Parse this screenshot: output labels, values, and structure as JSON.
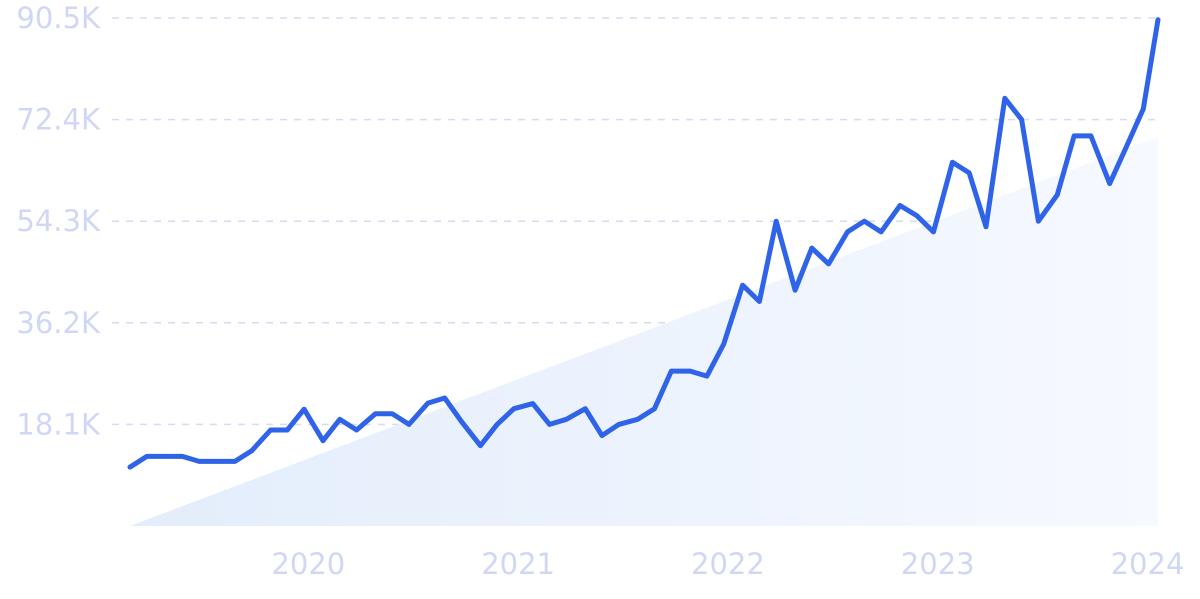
{
  "chart_data": {
    "type": "line",
    "title": "",
    "xlabel": "",
    "ylabel": "",
    "ylim": [
      0,
      90500
    ],
    "xlim": [
      2019.15,
      2024.05
    ],
    "grid": true,
    "y_tick_labels": [
      "18.1K",
      "36.2K",
      "54.3K",
      "72.4K",
      "90.5K"
    ],
    "y_ticks": [
      18100,
      36200,
      54300,
      72400,
      90500
    ],
    "x_tick_labels": [
      "2020",
      "2021",
      "2022",
      "2023",
      "2024"
    ],
    "x_ticks": [
      2020,
      2021,
      2022,
      2023,
      2024
    ],
    "colors": {
      "line": "#2f63e8",
      "trend_fill": "#e3edfb",
      "grid": "#d5dcf2",
      "tick_text": "#cfd7f5"
    },
    "trend": {
      "x": [
        2019.15,
        2024.05
      ],
      "y": [
        0,
        69300
      ]
    },
    "series": [
      {
        "x": [
          2019.15,
          2019.23,
          2019.32,
          2019.4,
          2019.48,
          2019.57,
          2019.65,
          2019.73,
          2019.82,
          2019.9,
          2019.98,
          2020.07,
          2020.15,
          2020.23,
          2020.32,
          2020.4,
          2020.48,
          2020.57,
          2020.65,
          2020.73,
          2020.82,
          2020.9,
          2020.98,
          2021.07,
          2021.15,
          2021.23,
          2021.32,
          2021.4,
          2021.48,
          2021.57,
          2021.65,
          2021.73,
          2021.82,
          2021.9,
          2021.98,
          2022.07,
          2022.15,
          2022.23,
          2022.32,
          2022.4,
          2022.48,
          2022.57,
          2022.65,
          2022.73,
          2022.82,
          2022.9,
          2022.98,
          2023.07,
          2023.15,
          2023.23,
          2023.32,
          2023.4,
          2023.48,
          2023.57,
          2023.65,
          2023.73,
          2023.82,
          2023.9,
          2023.98,
          2024.05
        ],
        "y": [
          10500,
          12400,
          12400,
          12400,
          11500,
          11500,
          11500,
          13400,
          17100,
          17100,
          20800,
          15200,
          19000,
          17100,
          20000,
          20000,
          18100,
          21900,
          22800,
          18600,
          14300,
          18100,
          20900,
          21800,
          18100,
          19000,
          20900,
          16100,
          18100,
          19000,
          20900,
          27600,
          27600,
          26700,
          32400,
          42900,
          40000,
          54300,
          42000,
          49500,
          46700,
          52400,
          54300,
          52400,
          57100,
          55300,
          52400,
          64800,
          62900,
          53300,
          76200,
          72400,
          54300,
          59000,
          69500,
          69500,
          61000,
          67600,
          74300,
          90200
        ]
      }
    ]
  }
}
